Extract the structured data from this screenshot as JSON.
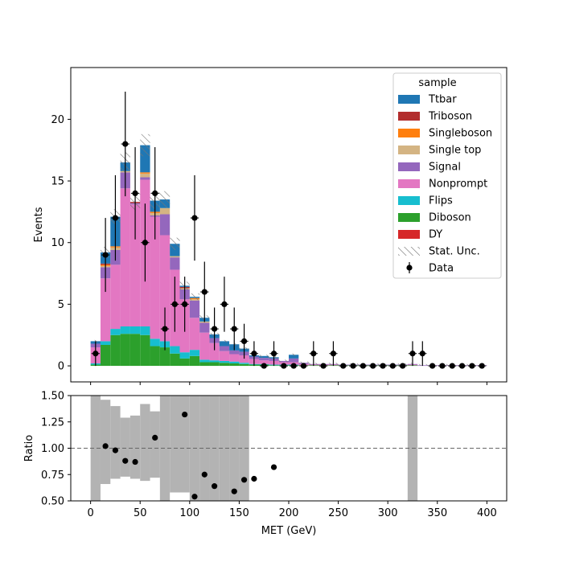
{
  "chart_data": [
    {
      "type": "bar",
      "subtype": "stacked-histogram-with-data-points",
      "xlabel": "",
      "ylabel": "Events",
      "xlim": [
        -20,
        420
      ],
      "ylim": [
        -1.3,
        24.2
      ],
      "xticks": [
        0,
        50,
        100,
        150,
        200,
        250,
        300,
        350,
        400
      ],
      "yticks": [
        0,
        5,
        10,
        15,
        20
      ],
      "bin_edges": [
        0,
        10,
        20,
        30,
        40,
        50,
        60,
        70,
        80,
        90,
        100,
        110,
        120,
        130,
        140,
        150,
        160,
        170,
        180,
        190,
        200,
        210,
        220,
        230,
        240,
        250,
        260,
        270,
        280,
        290,
        300,
        310,
        320,
        330,
        340,
        350,
        360,
        370,
        380,
        390,
        400
      ],
      "stack_order": [
        "Diboson",
        "Flips",
        "Nonprompt",
        "Signal",
        "Single top",
        "Singleboson",
        "Triboson",
        "Ttbar"
      ],
      "series": [
        {
          "name": "Diboson",
          "color": "#2ca02c",
          "values": [
            0.1,
            1.7,
            2.5,
            2.6,
            2.6,
            2.5,
            1.6,
            1.5,
            1.0,
            0.6,
            0.8,
            0.3,
            0.3,
            0.25,
            0.2,
            0.15,
            0.1,
            0.1,
            0.05,
            0.05,
            0.05,
            0.05,
            0.05,
            0.05,
            0.05,
            0.05,
            0.05,
            0.05,
            0.05,
            0.05,
            0.05,
            0.05,
            0.05,
            0,
            0,
            0,
            0,
            0,
            0,
            0
          ]
        },
        {
          "name": "Flips",
          "color": "#17becf",
          "values": [
            0.1,
            0.3,
            0.5,
            0.6,
            0.6,
            0.7,
            0.6,
            0.5,
            0.6,
            0.5,
            0.5,
            0.2,
            0.15,
            0.15,
            0.15,
            0.1,
            0.05,
            0.05,
            0.05,
            0.05,
            0.05,
            0,
            0,
            0,
            0,
            0,
            0,
            0,
            0,
            0,
            0,
            0,
            0,
            0,
            0,
            0,
            0,
            0,
            0,
            0
          ]
        },
        {
          "name": "Nonprompt",
          "color": "#e377c2",
          "values": [
            1.3,
            5.1,
            5.2,
            11.2,
            9.9,
            11.9,
            9.9,
            8.6,
            6.2,
            4.3,
            2.6,
            2.2,
            1.4,
            0.8,
            0.6,
            0.6,
            0.4,
            0.3,
            0.3,
            0.2,
            0.2,
            0.1,
            0.05,
            0.05,
            0.05,
            0,
            0,
            0,
            0,
            0,
            0,
            0,
            0.05,
            0,
            0,
            0,
            0,
            0,
            0,
            0
          ]
        },
        {
          "name": "Signal",
          "color": "#9467bd",
          "values": [
            0.3,
            0.9,
            1.2,
            1.3,
            0.1,
            0.2,
            0.1,
            1.7,
            1.0,
            0.8,
            1.4,
            0.8,
            0.4,
            0.4,
            0.3,
            0.3,
            0.2,
            0.2,
            0.2,
            0.1,
            0.3,
            0.1,
            0.05,
            0.05,
            0.05,
            0.05,
            0.05,
            0.05,
            0.05,
            0.05,
            0.05,
            0.05,
            0.05,
            0.05,
            0.05,
            0.05,
            0.05,
            0.05,
            0.05,
            0.05
          ]
        },
        {
          "name": "Single top",
          "color": "#d4b483",
          "values": [
            0,
            0.1,
            0.2,
            0.1,
            0,
            0.3,
            0.2,
            0.5,
            0.1,
            0.1,
            0.1,
            0.1,
            0,
            0,
            0,
            0,
            0,
            0,
            0,
            0,
            0,
            0,
            0,
            0,
            0,
            0,
            0,
            0,
            0,
            0,
            0,
            0,
            0,
            0,
            0,
            0,
            0,
            0,
            0,
            0
          ]
        },
        {
          "name": "Singleboson",
          "color": "#ff7f0e",
          "values": [
            0,
            0.1,
            0.1,
            0,
            0,
            0.1,
            0.1,
            0,
            0,
            0,
            0.1,
            0,
            0,
            0,
            0,
            0,
            0,
            0,
            0,
            0,
            0,
            0,
            0,
            0,
            0,
            0,
            0,
            0,
            0,
            0,
            0,
            0,
            0,
            0,
            0,
            0,
            0,
            0,
            0,
            0
          ]
        },
        {
          "name": "Triboson",
          "color": "#b22d2d",
          "values": [
            0,
            0.1,
            0,
            0,
            0.1,
            0,
            0,
            0,
            0,
            0.1,
            0,
            0,
            0,
            0,
            0,
            0,
            0,
            0,
            0,
            0,
            0,
            0,
            0,
            0,
            0,
            0,
            0,
            0,
            0,
            0,
            0,
            0,
            0,
            0,
            0,
            0,
            0,
            0,
            0,
            0
          ]
        },
        {
          "name": "Ttbar",
          "color": "#1f77b4",
          "values": [
            0.2,
            0.9,
            2.4,
            0.7,
            0,
            2.2,
            0.9,
            0.7,
            1.0,
            0.1,
            0.1,
            0.3,
            0.3,
            0.4,
            0.5,
            0.25,
            0.1,
            0.15,
            0.1,
            0,
            0.3,
            0,
            0,
            0,
            0,
            0,
            0,
            0,
            0,
            0,
            0,
            0,
            0,
            0,
            0,
            0,
            0,
            0,
            0,
            0
          ]
        },
        {
          "name": "DY",
          "color": "#d62728",
          "values": [
            0,
            0,
            0,
            0,
            0,
            0,
            0,
            0,
            0,
            0,
            0,
            0,
            0,
            0,
            0,
            0,
            0,
            0,
            0,
            0,
            0,
            0,
            0,
            0,
            0,
            0,
            0,
            0,
            0,
            0,
            0,
            0,
            0,
            0,
            0,
            0,
            0,
            0,
            0,
            0
          ]
        }
      ],
      "data_points": {
        "name": "Data",
        "x": [
          5,
          15,
          25,
          35,
          45,
          55,
          65,
          75,
          85,
          95,
          105,
          115,
          125,
          135,
          145,
          155,
          165,
          175,
          185,
          195,
          205,
          215,
          225,
          235,
          245,
          255,
          265,
          275,
          285,
          295,
          305,
          315,
          325,
          335,
          345,
          355,
          365,
          375,
          385,
          395
        ],
        "y": [
          1,
          9,
          12,
          18,
          14,
          10,
          14,
          3,
          5,
          5,
          12,
          6,
          3,
          5,
          3,
          2,
          1,
          0,
          1,
          0,
          0,
          0,
          1,
          0,
          1,
          0,
          0,
          0,
          0,
          0,
          0,
          0,
          1,
          1,
          0,
          0,
          0,
          0,
          0,
          0
        ]
      },
      "legend": {
        "title": "sample",
        "position": "top-right",
        "entries": [
          "Ttbar",
          "Triboson",
          "Singleboson",
          "Single top",
          "Signal",
          "Nonprompt",
          "Flips",
          "Diboson",
          "DY",
          "Stat. Unc.",
          "Data"
        ]
      }
    },
    {
      "type": "scatter",
      "subtype": "ratio-panel",
      "xlabel": "MET (GeV)",
      "ylabel": "Ratio",
      "xlim": [
        -20,
        420
      ],
      "ylim": [
        0.5,
        1.5
      ],
      "xticks": [
        0,
        50,
        100,
        150,
        200,
        250,
        300,
        350,
        400
      ],
      "yticks": [
        "0.50",
        "0.75",
        "1.00",
        "1.25",
        "1.50"
      ],
      "reference_line": 1.0,
      "uncertainty_band": {
        "bins": [
          [
            0,
            10
          ],
          [
            10,
            20
          ],
          [
            20,
            30
          ],
          [
            30,
            40
          ],
          [
            40,
            50
          ],
          [
            50,
            60
          ],
          [
            60,
            70
          ],
          [
            70,
            80
          ],
          [
            80,
            90
          ],
          [
            90,
            100
          ],
          [
            100,
            110
          ],
          [
            110,
            120
          ],
          [
            120,
            130
          ],
          [
            130,
            140
          ],
          [
            140,
            150
          ],
          [
            150,
            160
          ],
          [
            320,
            330
          ]
        ],
        "low": [
          0.5,
          0.66,
          0.71,
          0.73,
          0.71,
          0.69,
          0.72,
          0.5,
          0.58,
          0.58,
          0.5,
          0.5,
          0.5,
          0.5,
          0.5,
          0.5,
          0.5
        ],
        "high": [
          1.5,
          1.46,
          1.4,
          1.29,
          1.31,
          1.42,
          1.35,
          1.5,
          1.5,
          1.5,
          1.5,
          1.5,
          1.5,
          1.5,
          1.5,
          1.5,
          1.5
        ]
      },
      "points": {
        "x": [
          15,
          25,
          35,
          45,
          65,
          95,
          105,
          115,
          125,
          145,
          155,
          165,
          185
        ],
        "y": [
          1.02,
          0.98,
          0.88,
          0.87,
          1.1,
          1.32,
          0.54,
          0.75,
          0.64,
          0.59,
          0.7,
          0.71,
          0.82
        ]
      }
    }
  ]
}
